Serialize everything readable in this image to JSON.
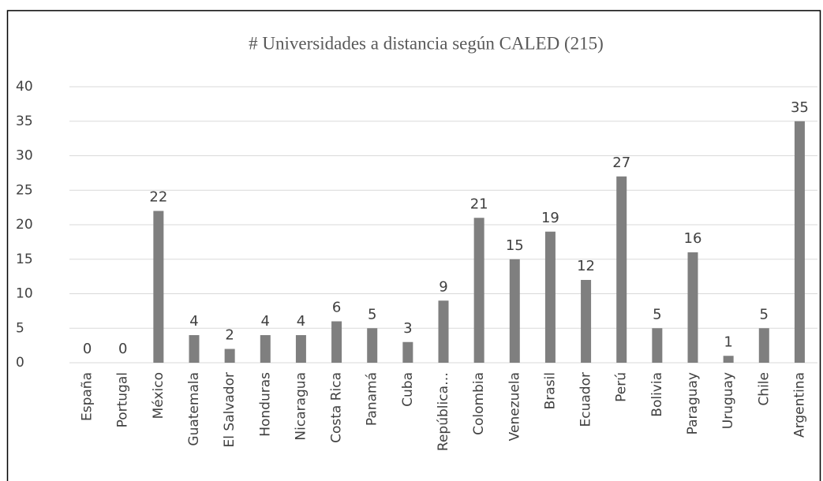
{
  "chart_data": {
    "type": "bar",
    "title": "# Universidades a distancia según CALED (215)",
    "categories": [
      "España",
      "Portugal",
      "México",
      "Guatemala",
      "El Salvador",
      "Honduras",
      "Nicaragua",
      "Costa Rica",
      "Panamá",
      "Cuba",
      "República…",
      "Colombia",
      "Venezuela",
      "Brasil",
      "Ecuador",
      "Perú",
      "Bolivia",
      "Paraguay",
      "Uruguay",
      "Chile",
      "Argentina"
    ],
    "values": [
      0,
      0,
      22,
      4,
      2,
      4,
      4,
      6,
      5,
      3,
      9,
      21,
      15,
      19,
      12,
      27,
      5,
      16,
      1,
      5,
      35
    ],
    "color": "#7f7f7f",
    "ylim": [
      0,
      40
    ],
    "yticks": [
      0,
      5,
      10,
      15,
      20,
      25,
      30,
      35,
      40
    ],
    "grid": true
  }
}
